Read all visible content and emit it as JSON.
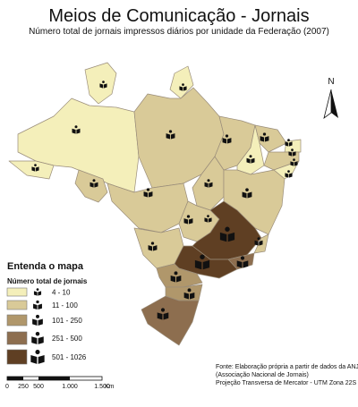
{
  "header": {
    "title": "Meios de Comunicação - Jornais",
    "subtitle": "Número total de jornais impressos diários por unidade da Federação (2007)"
  },
  "north": "N",
  "legend": {
    "heading": "Entenda o mapa",
    "subheading": "Número total de jornais",
    "classes": [
      {
        "label": "4 - 10",
        "color": "#f4efba"
      },
      {
        "label": "11 - 100",
        "color": "#d9ca98"
      },
      {
        "label": "101 - 250",
        "color": "#b0976b"
      },
      {
        "label": "251 - 500",
        "color": "#8d6e4f"
      },
      {
        "label": "501 - 1026",
        "color": "#5f3f23"
      }
    ]
  },
  "scale": {
    "labels": [
      "0",
      "250",
      "500",
      "1.000",
      "1.500"
    ],
    "unit": "Km"
  },
  "source": [
    "Fonte: Elaboração própria a partir de dados da ANJ",
    "(Associação Nacional de Jornais)",
    "Projeção Transversa de Mercator - UTM Zona 22S"
  ]
}
